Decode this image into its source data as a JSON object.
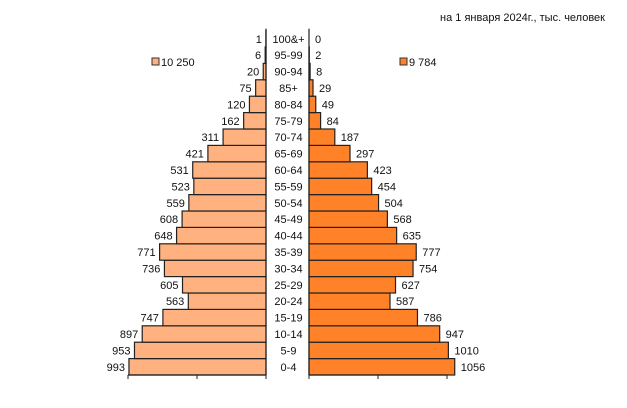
{
  "chart_data": {
    "type": "bar",
    "subtype": "population-pyramid",
    "title": "на 1 января 2024г., тыс. человек",
    "categories": [
      "0-4",
      "5-9",
      "10-14",
      "15-19",
      "20-24",
      "25-29",
      "30-34",
      "35-39",
      "40-44",
      "45-49",
      "50-54",
      "55-59",
      "60-64",
      "65-69",
      "70-74",
      "75-79",
      "80-84",
      "85+",
      "90-94",
      "95-99",
      "100&+"
    ],
    "series": [
      {
        "name": "10 250",
        "side": "left",
        "color": "#FFB27F",
        "values": [
          993,
          953,
          897,
          747,
          563,
          605,
          736,
          771,
          648,
          608,
          559,
          523,
          531,
          421,
          311,
          162,
          120,
          75,
          20,
          6,
          1
        ]
      },
      {
        "name": "9 784",
        "side": "right",
        "color": "#FF8229",
        "values": [
          1056,
          1010,
          947,
          786,
          587,
          627,
          754,
          777,
          635,
          568,
          504,
          454,
          423,
          297,
          187,
          84,
          49,
          29,
          8,
          2,
          0
        ]
      }
    ],
    "xlim": [
      0,
      1000
    ],
    "x_ticks": [
      0,
      500,
      1000
    ],
    "grid": false,
    "legend": {
      "left_label": "10 250",
      "right_label": "9 784",
      "placement": "top-left / top-right"
    }
  }
}
